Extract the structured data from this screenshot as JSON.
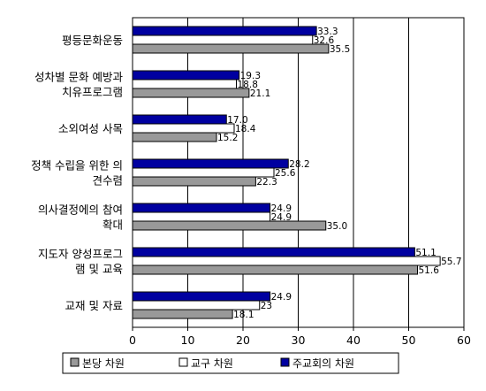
{
  "chart_data": {
    "type": "bar",
    "orientation": "horizontal",
    "categories": [
      [
        "평등문화운동"
      ],
      [
        "성차별 문화 예방과",
        "치유프로그램"
      ],
      [
        "소외여성 사목"
      ],
      [
        "정책 수립을 위한 의",
        "견수렴"
      ],
      [
        "의사결정에의 참여",
        "확대"
      ],
      [
        "지도자 양성프로그",
        "램 및 교육"
      ],
      [
        "교재 및 자료"
      ]
    ],
    "series": [
      {
        "name": "주교회의 차원",
        "color": "#0000a0",
        "values": [
          33.3,
          19.3,
          17.0,
          28.2,
          24.9,
          51.1,
          24.9
        ],
        "labels": [
          "33.3",
          "19.3",
          "17.0",
          "28.2",
          "24.9",
          "51.1",
          "24.9"
        ]
      },
      {
        "name": "교구 차원",
        "color": "#ffffff",
        "values": [
          32.6,
          18.8,
          18.4,
          25.6,
          24.9,
          55.7,
          23
        ],
        "labels": [
          "32.6",
          "18.8",
          "18.4",
          "25.6",
          "24.9",
          "55.7",
          "23"
        ]
      },
      {
        "name": "본당 차원",
        "color": "#999999",
        "values": [
          35.5,
          21.1,
          15.2,
          22.3,
          35.0,
          51.6,
          18.1
        ],
        "labels": [
          "35.5",
          "21.1",
          "15.2",
          "22.3",
          "35.0",
          "51.6",
          "18.1"
        ]
      }
    ],
    "xlim": [
      0,
      60
    ],
    "xticks": [
      "0",
      "10",
      "20",
      "30",
      "40",
      "50",
      "60"
    ],
    "grid": "vertical",
    "legend": {
      "placement": "bottom",
      "entries": [
        "본당 차원",
        "교구 차원",
        "주교회의 차원"
      ],
      "colors": [
        "#999999",
        "#ffffff",
        "#0000a0"
      ]
    },
    "title": "",
    "xlabel": "",
    "ylabel": ""
  }
}
